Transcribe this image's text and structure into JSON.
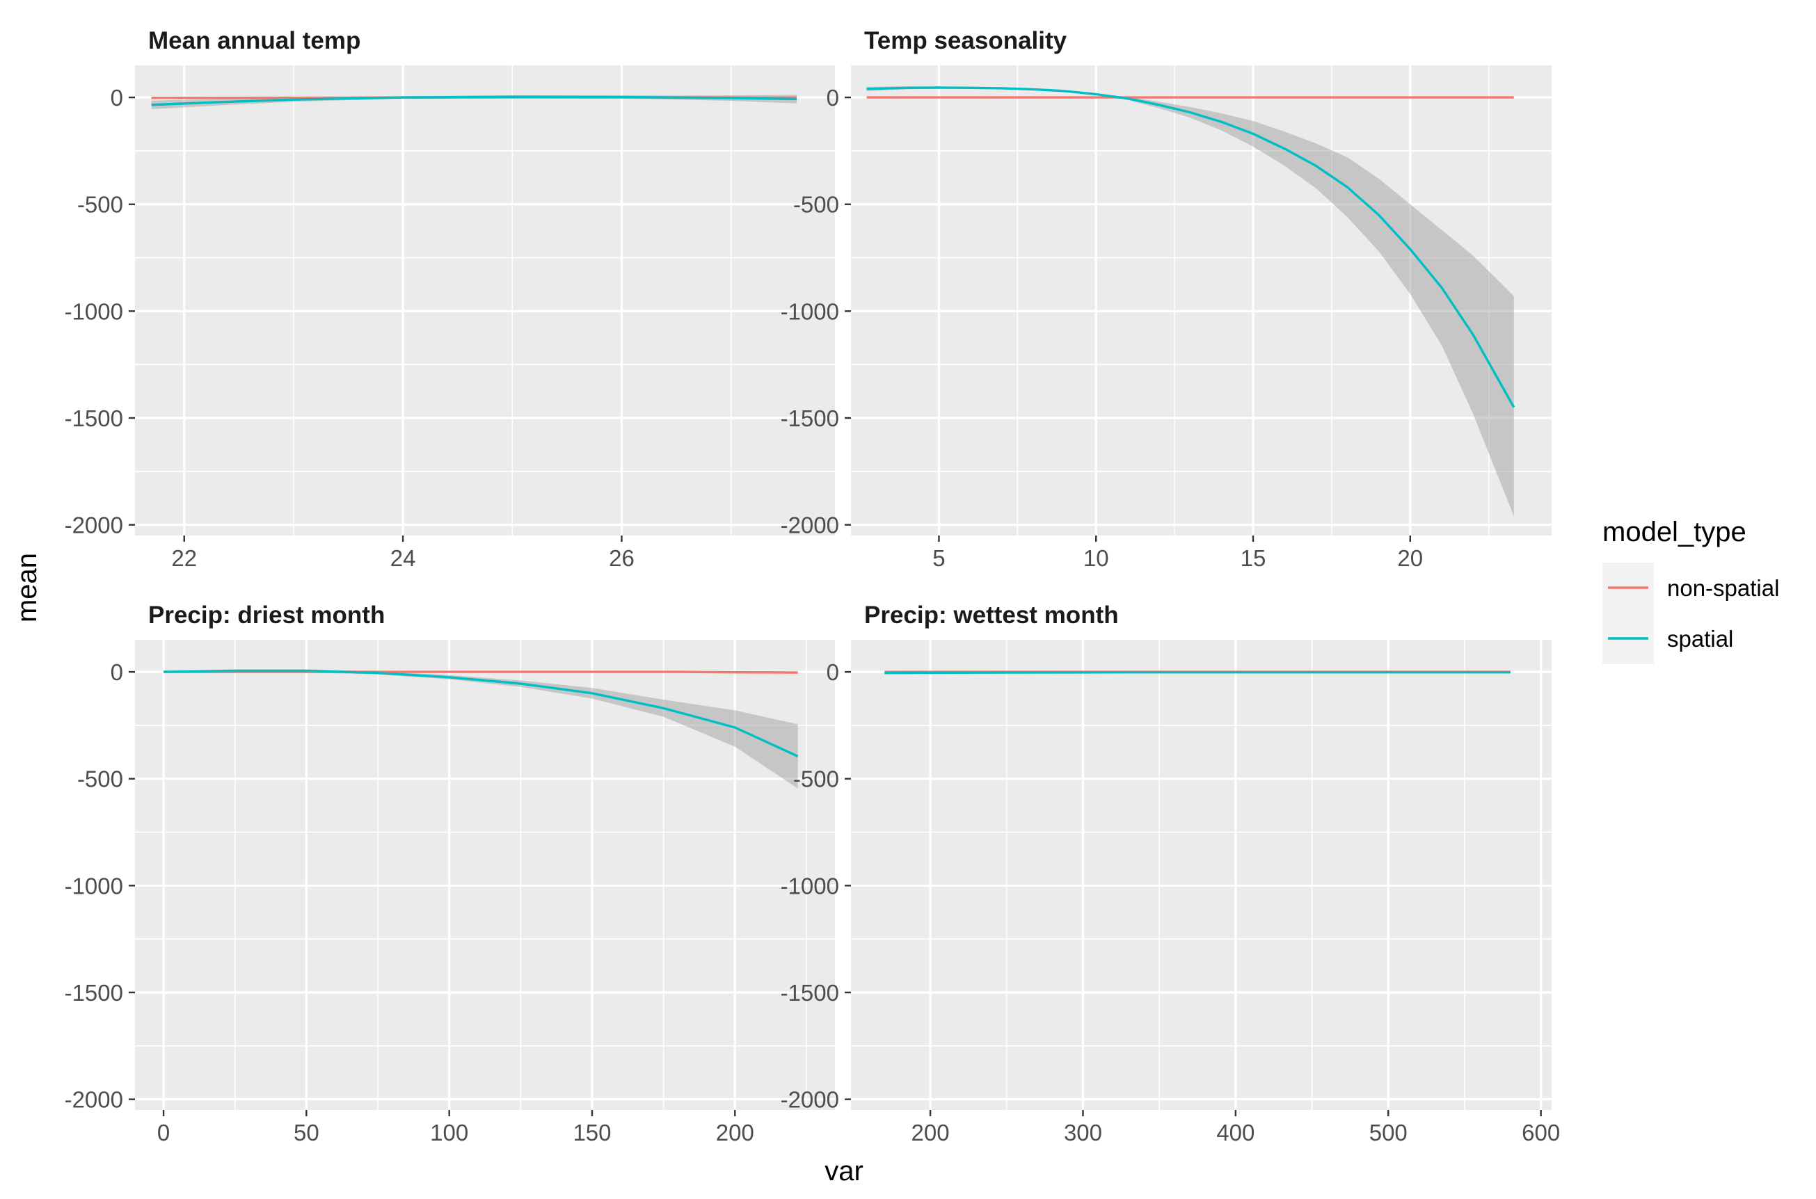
{
  "colors": {
    "non-spatial": "#F8766D",
    "spatial": "#00BFC4",
    "ribbon": "#999999",
    "panel": "#EBEBEB"
  },
  "axis": {
    "xlabel": "var",
    "ylabel": "mean"
  },
  "legend": {
    "title": "model_type",
    "position": "right",
    "items": [
      {
        "label": "non-spatial",
        "color": "#F8766D"
      },
      {
        "label": "spatial",
        "color": "#00BFC4"
      }
    ]
  },
  "chart_data": [
    {
      "type": "line",
      "title": "Mean annual temp",
      "xlim": [
        21.55,
        27.95
      ],
      "ylim": [
        -2050,
        150
      ],
      "xticks": [
        22,
        24,
        26
      ],
      "xminor": [
        23,
        25,
        27
      ],
      "yticks": [
        0,
        -500,
        -1000,
        -1500,
        -2000
      ],
      "yminor": [
        -250,
        -750,
        -1250,
        -1750
      ],
      "grid": true,
      "series": [
        {
          "name": "non-spatial",
          "x": [
            21.7,
            22.5,
            23.5,
            24.5,
            25.5,
            26.5,
            27.6
          ],
          "values": [
            -2,
            -2,
            -1,
            0,
            0,
            0,
            -1
          ]
        },
        {
          "name": "spatial",
          "x": [
            21.7,
            22.3,
            23.0,
            24.0,
            25.0,
            26.0,
            27.0,
            27.6
          ],
          "values": [
            -35,
            -22,
            -10,
            0,
            3,
            2,
            -3,
            -8
          ],
          "lower": [
            -55,
            -38,
            -20,
            -6,
            -4,
            -5,
            -16,
            -28
          ],
          "upper": [
            -15,
            -7,
            0,
            6,
            10,
            9,
            10,
            12
          ]
        }
      ]
    },
    {
      "type": "line",
      "title": "Temp seasonality",
      "xlim": [
        2.2,
        24.5
      ],
      "ylim": [
        -2050,
        150
      ],
      "xticks": [
        5,
        10,
        15,
        20
      ],
      "xminor": [
        7.5,
        12.5,
        17.5,
        22.5
      ],
      "yticks": [
        0,
        -500,
        -1000,
        -1500,
        -2000
      ],
      "yminor": [
        -250,
        -750,
        -1250,
        -1750
      ],
      "grid": true,
      "series": [
        {
          "name": "non-spatial",
          "x": [
            2.7,
            8,
            13,
            18,
            23.3
          ],
          "values": [
            0,
            0,
            0,
            0,
            0
          ]
        },
        {
          "name": "spatial",
          "x": [
            2.7,
            4,
            5,
            6,
            7,
            8,
            9,
            10,
            11,
            12,
            13,
            14,
            15,
            16,
            17,
            18,
            19,
            20,
            21,
            22,
            23.3
          ],
          "values": [
            40,
            45,
            46,
            45,
            43,
            38,
            30,
            15,
            -5,
            -35,
            -70,
            -115,
            -170,
            -240,
            -320,
            -420,
            -550,
            -710,
            -890,
            -1110,
            -1450
          ],
          "lower": [
            30,
            38,
            41,
            41,
            40,
            35,
            27,
            12,
            -12,
            -50,
            -95,
            -155,
            -230,
            -320,
            -425,
            -560,
            -720,
            -920,
            -1160,
            -1480,
            -1960
          ],
          "upper": [
            50,
            52,
            51,
            49,
            46,
            41,
            33,
            18,
            2,
            -20,
            -45,
            -75,
            -110,
            -160,
            -215,
            -280,
            -380,
            -500,
            -620,
            -740,
            -930
          ]
        }
      ]
    },
    {
      "type": "line",
      "title": "Precip: driest month",
      "xlim": [
        -10,
        235
      ],
      "ylim": [
        -2050,
        150
      ],
      "xticks": [
        0,
        50,
        100,
        150,
        200
      ],
      "xminor": [
        25,
        75,
        125,
        175,
        225
      ],
      "yticks": [
        0,
        -500,
        -1000,
        -1500,
        -2000
      ],
      "yminor": [
        -250,
        -750,
        -1250,
        -1750
      ],
      "grid": true,
      "series": [
        {
          "name": "non-spatial",
          "x": [
            0,
            100,
            150,
            180,
            200,
            222
          ],
          "values": [
            0,
            0,
            0,
            0,
            -2,
            -3
          ]
        },
        {
          "name": "spatial",
          "x": [
            0,
            25,
            50,
            75,
            100,
            125,
            150,
            175,
            200,
            222
          ],
          "values": [
            0,
            5,
            5,
            -5,
            -25,
            -55,
            -100,
            -170,
            -260,
            -395
          ],
          "lower": [
            -6,
            -2,
            -3,
            -12,
            -35,
            -70,
            -125,
            -210,
            -350,
            -545
          ],
          "upper": [
            6,
            12,
            12,
            3,
            -15,
            -40,
            -75,
            -130,
            -180,
            -245
          ]
        }
      ]
    },
    {
      "type": "line",
      "title": "Precip: wettest month",
      "xlim": [
        148,
        607
      ],
      "ylim": [
        -2050,
        150
      ],
      "xticks": [
        200,
        300,
        400,
        500,
        600
      ],
      "xminor": [
        250,
        350,
        450,
        550
      ],
      "yticks": [
        0,
        -500,
        -1000,
        -1500,
        -2000
      ],
      "yminor": [
        -250,
        -750,
        -1250,
        -1750
      ],
      "grid": true,
      "series": [
        {
          "name": "non-spatial",
          "x": [
            170,
            580
          ],
          "values": [
            0,
            0
          ]
        },
        {
          "name": "spatial",
          "x": [
            170,
            250,
            350,
            450,
            580
          ],
          "values": [
            -5,
            -3,
            -2,
            -2,
            -2
          ],
          "lower": [
            -12,
            -8,
            -6,
            -6,
            -8
          ],
          "upper": [
            2,
            2,
            2,
            2,
            4
          ]
        }
      ]
    }
  ]
}
